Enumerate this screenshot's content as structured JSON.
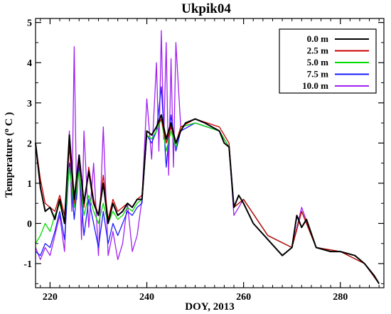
{
  "chart_data": {
    "type": "line",
    "title": "Ukpik04",
    "xlabel": "DOY, 2013",
    "ylabel": "Temperature ( o C )",
    "ylabel_parts": {
      "pre": "Temperature (",
      "sup": "o",
      "post": " C )"
    },
    "xlim": [
      217,
      289
    ],
    "ylim": [
      -1.6,
      5.1
    ],
    "xticks": [
      220,
      240,
      260,
      280
    ],
    "yticks": [
      -1,
      0,
      1,
      2,
      3,
      4,
      5
    ],
    "grid": false,
    "legend_position": "top-right",
    "series": [
      {
        "name": "10.0 m",
        "color": "#a020f0",
        "x": [
          217,
          218,
          219,
          220,
          221,
          222,
          223,
          224,
          224.5,
          225,
          225.5,
          226,
          226.5,
          227,
          228,
          229,
          230,
          231,
          232,
          233,
          234,
          235,
          236,
          237,
          238,
          239,
          240,
          241,
          242,
          242.5,
          243,
          243.5,
          244,
          244.5,
          245,
          245.5,
          246,
          247,
          250,
          255,
          257,
          258,
          260,
          265,
          270,
          272,
          275,
          280,
          285,
          288
        ],
        "y": [
          -0.6,
          -0.9,
          -0.6,
          -0.8,
          -0.3,
          0.2,
          -0.7,
          2.3,
          0.3,
          4.4,
          0.6,
          1.6,
          -0.4,
          2.3,
          -0.1,
          1.5,
          -0.8,
          2.4,
          -0.8,
          -0.2,
          -0.9,
          -0.5,
          0.5,
          -0.7,
          -0.3,
          0.6,
          3.1,
          1.6,
          4.0,
          1.8,
          4.8,
          2.1,
          4.5,
          1.2,
          4.1,
          1.4,
          4.5,
          2.4,
          2.5,
          2.3,
          1.9,
          0.2,
          0.6,
          -0.3,
          -0.6,
          0.4,
          -0.6,
          -0.7,
          -1.0,
          -1.5
        ]
      },
      {
        "name": "7.5 m",
        "color": "#1a1aff",
        "x": [
          217,
          218,
          219,
          220,
          221,
          222,
          223,
          224,
          225,
          226,
          227,
          228,
          229,
          230,
          231,
          232,
          233,
          234,
          235,
          236,
          237,
          238,
          239,
          240,
          241,
          242,
          243,
          244,
          245,
          246,
          247,
          250,
          255,
          257,
          258,
          260,
          265,
          270,
          272,
          275,
          280,
          285,
          288
        ],
        "y": [
          -0.7,
          -0.8,
          -0.5,
          -0.6,
          -0.2,
          0.3,
          -0.4,
          1.5,
          0.1,
          1.4,
          -0.3,
          0.6,
          0.0,
          -0.6,
          0.3,
          -0.5,
          0.0,
          -0.3,
          0.0,
          0.3,
          0.2,
          0.4,
          0.5,
          2.2,
          2.0,
          2.3,
          3.4,
          1.4,
          2.7,
          1.8,
          2.3,
          2.5,
          2.3,
          1.9,
          0.4,
          0.6,
          -0.3,
          -0.6,
          0.3,
          -0.6,
          -0.7,
          -1.0,
          -1.5
        ]
      },
      {
        "name": "5.0 m",
        "color": "#00dd00",
        "x": [
          217,
          218,
          219,
          220,
          221,
          222,
          223,
          224,
          225,
          226,
          227,
          228,
          229,
          230,
          231,
          232,
          233,
          234,
          235,
          236,
          237,
          238,
          239,
          240,
          241,
          242,
          243,
          244,
          245,
          246,
          247,
          250,
          255,
          257,
          258,
          260,
          265,
          270,
          272,
          275,
          280,
          285,
          288
        ],
        "y": [
          -0.5,
          -0.3,
          0.0,
          -0.2,
          0.2,
          0.5,
          0.0,
          1.4,
          0.4,
          1.3,
          0.2,
          0.7,
          0.3,
          0.0,
          0.5,
          0.0,
          0.3,
          0.1,
          0.2,
          0.4,
          0.3,
          0.5,
          0.6,
          2.2,
          2.1,
          2.3,
          2.6,
          1.8,
          2.3,
          1.9,
          2.4,
          2.5,
          2.3,
          1.9,
          0.4,
          0.6,
          -0.3,
          -0.6,
          0.3,
          -0.6,
          -0.7,
          -1.0,
          -1.5
        ]
      },
      {
        "name": "2.5 m",
        "color": "#cc0000",
        "x": [
          217,
          218,
          219,
          220,
          221,
          222,
          223,
          224,
          225,
          226,
          227,
          228,
          229,
          230,
          231,
          232,
          233,
          234,
          235,
          236,
          237,
          238,
          239,
          240,
          241,
          242,
          243,
          244,
          245,
          246,
          247,
          250,
          255,
          257,
          258,
          260,
          265,
          270,
          272,
          275,
          280,
          285,
          288
        ],
        "y": [
          2.0,
          1.1,
          0.5,
          0.4,
          0.3,
          0.7,
          0.2,
          1.9,
          0.5,
          1.6,
          0.4,
          1.4,
          0.6,
          0.2,
          1.2,
          0.1,
          0.6,
          0.3,
          0.4,
          0.5,
          0.4,
          0.6,
          0.7,
          2.3,
          2.2,
          2.4,
          2.6,
          2.0,
          2.4,
          2.0,
          2.4,
          2.6,
          2.4,
          2.0,
          0.4,
          0.6,
          -0.3,
          -0.6,
          0.3,
          -0.6,
          -0.7,
          -1.0,
          -1.5
        ]
      },
      {
        "name": "0.0 m",
        "color": "#000000",
        "x": [
          217,
          218,
          219,
          220,
          221,
          222,
          223,
          224,
          225,
          226,
          227,
          228,
          229,
          230,
          231,
          232,
          233,
          234,
          235,
          236,
          237,
          238,
          239,
          240,
          241,
          242,
          243,
          244,
          245,
          246,
          247,
          248,
          250,
          252,
          255,
          256,
          257,
          258,
          259,
          260,
          262,
          265,
          268,
          270,
          271,
          272,
          273,
          275,
          278,
          280,
          283,
          285,
          287,
          288
        ],
        "y": [
          2.0,
          0.9,
          0.3,
          0.4,
          0.1,
          0.6,
          0.0,
          2.2,
          0.6,
          1.7,
          0.5,
          1.3,
          0.5,
          0.2,
          1.0,
          0.0,
          0.5,
          0.2,
          0.3,
          0.5,
          0.4,
          0.6,
          0.6,
          2.3,
          2.2,
          2.4,
          2.7,
          2.1,
          2.5,
          2.0,
          2.3,
          2.5,
          2.6,
          2.5,
          2.3,
          2.0,
          1.9,
          0.4,
          0.7,
          0.5,
          0.0,
          -0.4,
          -0.8,
          -0.6,
          0.2,
          -0.1,
          0.1,
          -0.6,
          -0.7,
          -0.7,
          -0.8,
          -1.0,
          -1.3,
          -1.5
        ]
      }
    ]
  }
}
